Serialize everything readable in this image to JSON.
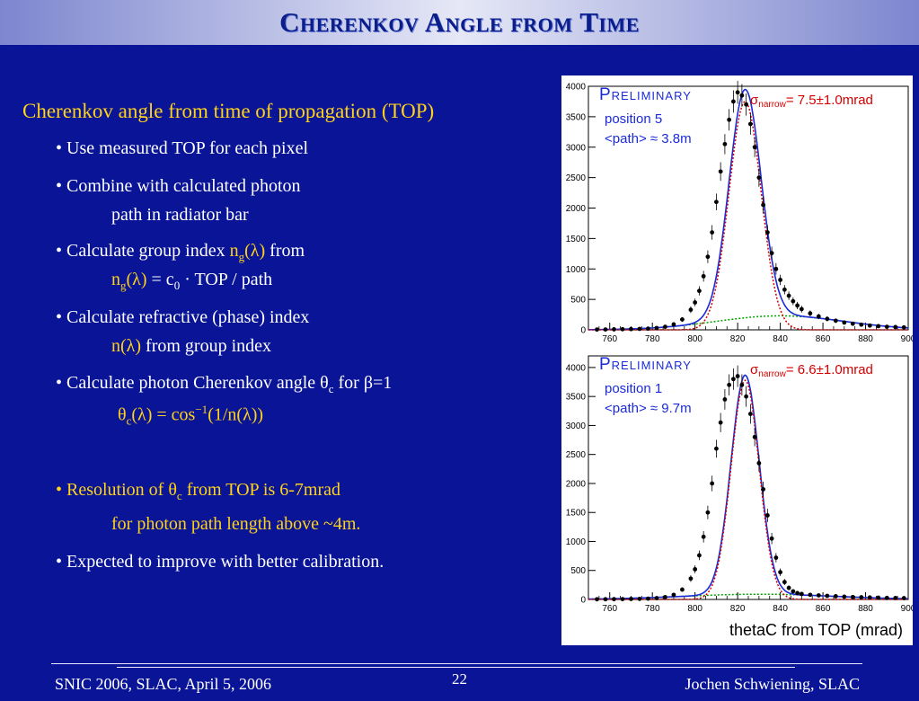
{
  "slide": {
    "title": "Cherenkov Angle from Time",
    "page_number": "22"
  },
  "text": {
    "heading": "Cherenkov angle from time of propagation (TOP)",
    "b1": "• Use measured TOP for each pixel",
    "b2a": "• Combine with calculated photon",
    "b2b": "path in radiator bar",
    "b3a_pre": "• Calculate group index ",
    "b3a_n": "n",
    "b3a_sub": "g",
    "b3a_lam": "(λ)",
    "b3a_post": " from",
    "b3b_n": "n",
    "b3b_sub": "g",
    "b3b_lam": "(λ)",
    "b3b_eq": " = c",
    "b3b_sub0": "0",
    "b3b_rest": " · TOP / path",
    "b4a": "• Calculate refractive (phase) index",
    "b4b_n": "n(λ)",
    "b4b_rest": " from group index",
    "b5_pre": "• Calculate photon Cherenkov angle θ",
    "b5_sub": "c",
    "b5_post": " for β=1",
    "b5b_theta": "θ",
    "b5b_sub": "c",
    "b5b_mid": "(λ) = cos",
    "b5b_sup": "−1",
    "b5b_end": "(1/n(λ))",
    "b6a_pre": "• Resolution of θ",
    "b6a_sub": "c",
    "b6a_post": " from TOP is 6-7mrad",
    "b6b": "for photon path length above ~4m.",
    "b7": "• Expected to improve with better calibration."
  },
  "footer": {
    "left": "SNIC 2006, SLAC, April 5, 2006",
    "right": "Jochen Schwiening, SLAC"
  },
  "colors": {
    "background": "#0a1496",
    "highlight": "#ffd21a",
    "fit_total": "#1a2bd9",
    "fit_narrow": "#d40000",
    "fit_background": "#00a000"
  },
  "chart_data": [
    {
      "type": "scatter",
      "tag": "Preliminary",
      "sigma_symbol": "σ",
      "sigma_sub": "narrow",
      "sigma_value": "= 7.5±1.0mrad",
      "label_position": "position 5",
      "label_path": "<path> ≈ 3.8m",
      "xlim": [
        750,
        900
      ],
      "ylim": [
        0,
        4000
      ],
      "xticks": [
        760,
        780,
        800,
        820,
        840,
        860,
        880,
        900
      ],
      "yticks": [
        0,
        500,
        1000,
        1500,
        2000,
        2500,
        3000,
        3500,
        4000
      ],
      "xlabel": "",
      "fit": {
        "mean": 823.5,
        "sigma_narrow": 7.5,
        "amplitude": 3750,
        "bg_amplitude": 230,
        "bg_center": 840,
        "bg_width": 30
      },
      "x": [
        754,
        758,
        762,
        766,
        770,
        774,
        778,
        782,
        786,
        790,
        794,
        798,
        800,
        802,
        804,
        806,
        808,
        810,
        812,
        814,
        816,
        818,
        820,
        822,
        824,
        826,
        828,
        830,
        832,
        834,
        836,
        838,
        840,
        842,
        844,
        846,
        848,
        850,
        854,
        858,
        862,
        866,
        870,
        874,
        878,
        882,
        886,
        890,
        894,
        898
      ],
      "values": [
        5,
        6,
        8,
        10,
        12,
        15,
        20,
        30,
        50,
        90,
        170,
        330,
        450,
        640,
        880,
        1200,
        1600,
        2100,
        2600,
        3050,
        3450,
        3750,
        3900,
        3850,
        3700,
        3380,
        3000,
        2500,
        2050,
        1600,
        1260,
        1000,
        820,
        660,
        560,
        470,
        400,
        340,
        270,
        220,
        180,
        150,
        120,
        100,
        85,
        70,
        60,
        50,
        45,
        40
      ]
    },
    {
      "type": "scatter",
      "tag": "Preliminary",
      "sigma_symbol": "σ",
      "sigma_sub": "narrow",
      "sigma_value": "= 6.6±1.0mrad",
      "label_position": "position 1",
      "label_path": "<path> ≈ 9.7m",
      "xlim": [
        750,
        900
      ],
      "ylim": [
        0,
        4200
      ],
      "xticks": [
        760,
        780,
        800,
        820,
        840,
        860,
        880,
        900
      ],
      "yticks": [
        0,
        500,
        1000,
        1500,
        2000,
        2500,
        3000,
        3500,
        4000
      ],
      "xlabel": "thetaC from TOP (mrad)",
      "fit": {
        "mean": 823.5,
        "sigma_narrow": 6.6,
        "amplitude": 3780,
        "bg_amplitude": 90,
        "bg_center": 830,
        "bg_width": 35
      },
      "x": [
        754,
        758,
        762,
        766,
        770,
        774,
        778,
        782,
        786,
        790,
        794,
        798,
        800,
        802,
        804,
        806,
        808,
        810,
        812,
        814,
        816,
        818,
        820,
        822,
        824,
        826,
        828,
        830,
        832,
        834,
        836,
        838,
        840,
        842,
        844,
        846,
        848,
        850,
        854,
        858,
        862,
        866,
        870,
        874,
        878,
        882,
        886,
        890,
        894,
        898
      ],
      "values": [
        3,
        4,
        5,
        6,
        8,
        10,
        14,
        22,
        40,
        80,
        170,
        360,
        520,
        760,
        1080,
        1500,
        2000,
        2600,
        3050,
        3450,
        3700,
        3800,
        3850,
        3700,
        3500,
        3200,
        2800,
        2350,
        1900,
        1450,
        1050,
        720,
        470,
        300,
        200,
        140,
        110,
        95,
        80,
        70,
        62,
        55,
        48,
        42,
        38,
        34,
        30,
        27,
        24,
        22
      ]
    }
  ]
}
